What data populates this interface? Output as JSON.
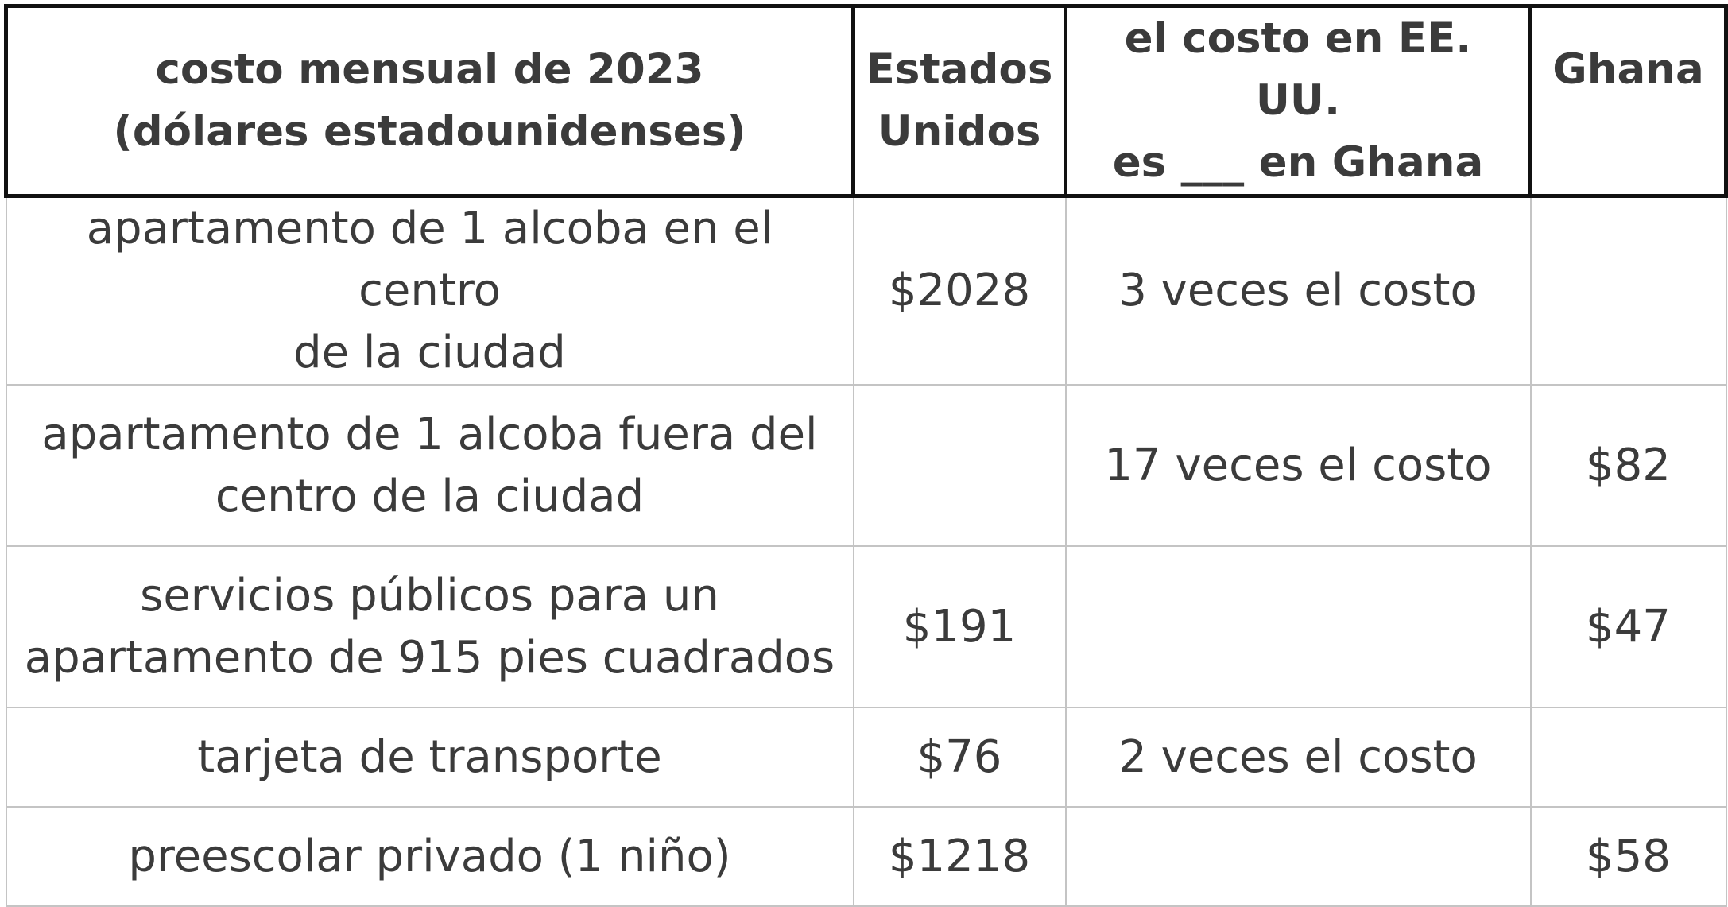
{
  "table": {
    "headers": {
      "item": {
        "line1": "costo mensual de 2023",
        "line2": "(dólares estadounidenses)"
      },
      "us": {
        "line1": "Estados",
        "line2": "Unidos"
      },
      "ratio": {
        "line1": "el costo en EE. UU.",
        "line2": "es ___ en Ghana"
      },
      "ghana": {
        "line1": "Ghana",
        "line2": ""
      }
    },
    "rows": [
      {
        "item_line1": "apartamento de 1 alcoba en el centro",
        "item_line2": "de la ciudad",
        "us": "$2028",
        "ratio": "3 veces el costo",
        "ghana": ""
      },
      {
        "item_line1": "apartamento de 1 alcoba fuera del",
        "item_line2": "centro de la ciudad",
        "us": "",
        "ratio": "17 veces el costo",
        "ghana": "$82"
      },
      {
        "item_line1": "servicios públicos para un",
        "item_line2": "apartamento de 915 pies cuadrados",
        "us": "$191",
        "ratio": "",
        "ghana": "$47"
      },
      {
        "item_line1": "tarjeta de transporte",
        "item_line2": "",
        "us": "$76",
        "ratio": "2 veces el costo",
        "ghana": ""
      },
      {
        "item_line1": "preescolar privado (1 niño)",
        "item_line2": "",
        "us": "$1218",
        "ratio": "",
        "ghana": "$58"
      }
    ]
  }
}
